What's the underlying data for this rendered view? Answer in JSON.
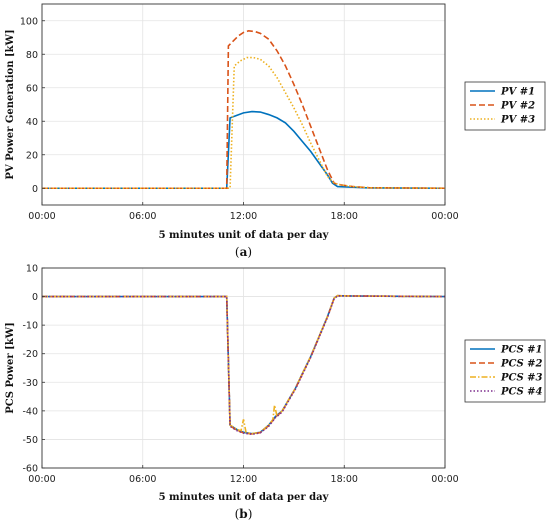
{
  "chart_data": [
    {
      "type": "line",
      "xlabel": "5 minutes unit of data per day",
      "ylabel": "PV Power Generation [kW]",
      "caption_letter": "a",
      "x_tick_labels": [
        "00:00",
        "06:00",
        "12:00",
        "18:00",
        "00:00"
      ],
      "xlim": [
        0,
        24
      ],
      "ylim": [
        -10,
        110
      ],
      "y_ticks": [
        0,
        20,
        40,
        60,
        80,
        100
      ],
      "legend_position": "right",
      "series": [
        {
          "name": "PV #1",
          "color": "#0072BD",
          "dash": "solid",
          "points": [
            [
              0,
              0
            ],
            [
              11,
              0
            ],
            [
              11.2,
              42
            ],
            [
              11.6,
              43.5
            ],
            [
              12,
              45
            ],
            [
              12.5,
              45.8
            ],
            [
              13,
              45.5
            ],
            [
              13.5,
              44
            ],
            [
              14,
              42
            ],
            [
              14.5,
              39
            ],
            [
              15,
              34
            ],
            [
              15.5,
              28
            ],
            [
              16,
              22
            ],
            [
              16.5,
              15
            ],
            [
              17,
              8
            ],
            [
              17.3,
              3
            ],
            [
              17.6,
              1
            ],
            [
              18.5,
              0.6
            ],
            [
              19.5,
              0.2
            ],
            [
              24,
              0
            ]
          ]
        },
        {
          "name": "PV #2",
          "color": "#D95319",
          "dash": "dashed",
          "points": [
            [
              0,
              0
            ],
            [
              11,
              0
            ],
            [
              11.1,
              85
            ],
            [
              11.4,
              88
            ],
            [
              11.7,
              91
            ],
            [
              12,
              93
            ],
            [
              12.3,
              94
            ],
            [
              12.7,
              93.5
            ],
            [
              13,
              92.5
            ],
            [
              13.5,
              89
            ],
            [
              14,
              82
            ],
            [
              14.5,
              73
            ],
            [
              15,
              62
            ],
            [
              15.5,
              50
            ],
            [
              16,
              37
            ],
            [
              16.5,
              24
            ],
            [
              17,
              11
            ],
            [
              17.4,
              3
            ],
            [
              17.8,
              2
            ],
            [
              18.5,
              1
            ],
            [
              19.5,
              0.3
            ],
            [
              24,
              0
            ]
          ]
        },
        {
          "name": "PV #3",
          "color": "#EDB120",
          "dash": "dotted",
          "points": [
            [
              0,
              0
            ],
            [
              11.2,
              0
            ],
            [
              11.45,
              73
            ],
            [
              11.8,
              76
            ],
            [
              12.2,
              78
            ],
            [
              12.6,
              78
            ],
            [
              13,
              77
            ],
            [
              13.5,
              73
            ],
            [
              14,
              66
            ],
            [
              14.5,
              57
            ],
            [
              15,
              48
            ],
            [
              15.5,
              38
            ],
            [
              16,
              27
            ],
            [
              16.5,
              17
            ],
            [
              17,
              7
            ],
            [
              17.4,
              3
            ],
            [
              17.8,
              2
            ],
            [
              18.5,
              1
            ],
            [
              19.5,
              0.3
            ],
            [
              24,
              0
            ]
          ]
        }
      ]
    },
    {
      "type": "line",
      "xlabel": "5 minutes unit of data per day",
      "ylabel": "PCS Power [kW]",
      "caption_letter": "b",
      "x_tick_labels": [
        "00:00",
        "06:00",
        "12:00",
        "18:00",
        "00:00"
      ],
      "xlim": [
        0,
        24
      ],
      "ylim": [
        -60,
        10
      ],
      "y_ticks": [
        -60,
        -50,
        -40,
        -30,
        -20,
        -10,
        0,
        10
      ],
      "legend_position": "right",
      "series": [
        {
          "name": "PCS #1",
          "color": "#0072BD",
          "dash": "solid",
          "points": [
            [
              0,
              0
            ],
            [
              11,
              0
            ],
            [
              11.2,
              -45
            ],
            [
              11.6,
              -46.5
            ],
            [
              12,
              -47.5
            ],
            [
              12.5,
              -48
            ],
            [
              13,
              -47.5
            ],
            [
              13.5,
              -45
            ],
            [
              13.9,
              -42
            ],
            [
              14.3,
              -40
            ],
            [
              14.7,
              -36
            ],
            [
              15.1,
              -32
            ],
            [
              15.5,
              -27
            ],
            [
              16,
              -21
            ],
            [
              16.5,
              -14
            ],
            [
              17,
              -7
            ],
            [
              17.4,
              -0.5
            ],
            [
              17.6,
              0.3
            ],
            [
              18.5,
              0.2
            ],
            [
              24,
              0
            ]
          ]
        },
        {
          "name": "PCS #2",
          "color": "#D95319",
          "dash": "dashed",
          "points": [
            [
              0,
              0
            ],
            [
              11,
              0
            ],
            [
              11.2,
              -45.2
            ],
            [
              11.6,
              -46.8
            ],
            [
              12,
              -47.7
            ],
            [
              12.5,
              -48.1
            ],
            [
              13,
              -47.6
            ],
            [
              13.5,
              -45.2
            ],
            [
              13.9,
              -42.2
            ],
            [
              14.3,
              -40.2
            ],
            [
              14.7,
              -36.1
            ],
            [
              15.1,
              -32.1
            ],
            [
              15.5,
              -27.2
            ],
            [
              16,
              -21.1
            ],
            [
              16.5,
              -14.1
            ],
            [
              17,
              -7.1
            ],
            [
              17.4,
              -0.6
            ],
            [
              17.6,
              0.3
            ],
            [
              18.5,
              0.2
            ],
            [
              24,
              0
            ]
          ]
        },
        {
          "name": "PCS #3",
          "color": "#EDB120",
          "dash": "dashdot",
          "points": [
            [
              0,
              0
            ],
            [
              11,
              0
            ],
            [
              11.2,
              -45
            ],
            [
              11.6,
              -46.5
            ],
            [
              11.85,
              -47
            ],
            [
              12,
              -43
            ],
            [
              12.15,
              -47.5
            ],
            [
              12.5,
              -48
            ],
            [
              13,
              -47.5
            ],
            [
              13.5,
              -45
            ],
            [
              13.75,
              -43
            ],
            [
              13.85,
              -38
            ],
            [
              14,
              -42
            ],
            [
              14.3,
              -40
            ],
            [
              14.7,
              -36
            ],
            [
              15.1,
              -32
            ],
            [
              15.5,
              -27
            ],
            [
              16,
              -21
            ],
            [
              16.5,
              -14
            ],
            [
              17,
              -7
            ],
            [
              17.4,
              -0.5
            ],
            [
              17.6,
              0.3
            ],
            [
              18.5,
              0.2
            ],
            [
              24,
              0
            ]
          ]
        },
        {
          "name": "PCS #4",
          "color": "#7E2F8E",
          "dash": "dotted",
          "points": [
            [
              0,
              0
            ],
            [
              11,
              0
            ],
            [
              11.2,
              -45.4
            ],
            [
              11.6,
              -46.9
            ],
            [
              12,
              -47.8
            ],
            [
              12.5,
              -48.2
            ],
            [
              13,
              -47.7
            ],
            [
              13.5,
              -45.4
            ],
            [
              13.9,
              -42.4
            ],
            [
              14.3,
              -40.4
            ],
            [
              14.7,
              -36.3
            ],
            [
              15.1,
              -32.3
            ],
            [
              15.5,
              -27.4
            ],
            [
              16,
              -21.3
            ],
            [
              16.5,
              -14.3
            ],
            [
              17,
              -7.3
            ],
            [
              17.4,
              -0.7
            ],
            [
              17.6,
              0.2
            ],
            [
              18.5,
              0.2
            ],
            [
              24,
              0
            ]
          ]
        }
      ]
    }
  ]
}
